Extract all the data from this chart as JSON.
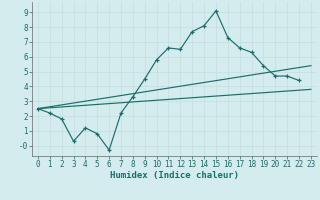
{
  "xlabel": "Humidex (Indice chaleur)",
  "bg_color": "#d4ecee",
  "grid_color": "#b8d8dc",
  "line_color": "#1a6e6a",
  "xlim": [
    -0.5,
    23.5
  ],
  "ylim": [
    -0.7,
    9.7
  ],
  "xticks": [
    0,
    1,
    2,
    3,
    4,
    5,
    6,
    7,
    8,
    9,
    10,
    11,
    12,
    13,
    14,
    15,
    16,
    17,
    18,
    19,
    20,
    21,
    22,
    23
  ],
  "yticks": [
    0,
    1,
    2,
    3,
    4,
    5,
    6,
    7,
    8,
    9
  ],
  "ytick_labels": [
    "-0",
    "1",
    "2",
    "3",
    "4",
    "5",
    "6",
    "7",
    "8",
    "9"
  ],
  "series1_x": [
    0,
    1,
    2,
    3,
    4,
    5,
    6,
    7,
    8,
    9,
    10,
    11,
    12,
    13,
    14,
    15,
    16,
    17,
    18,
    19,
    20,
    21,
    22
  ],
  "series1_y": [
    2.5,
    2.2,
    1.8,
    0.3,
    1.2,
    0.8,
    -0.3,
    2.2,
    3.3,
    4.5,
    5.8,
    6.6,
    6.5,
    7.7,
    8.1,
    9.1,
    7.3,
    6.6,
    6.3,
    5.4,
    4.7,
    4.7,
    4.4
  ],
  "series2_x": [
    0,
    23
  ],
  "series2_y": [
    2.5,
    5.4
  ],
  "series3_x": [
    0,
    23
  ],
  "series3_y": [
    2.5,
    3.8
  ]
}
